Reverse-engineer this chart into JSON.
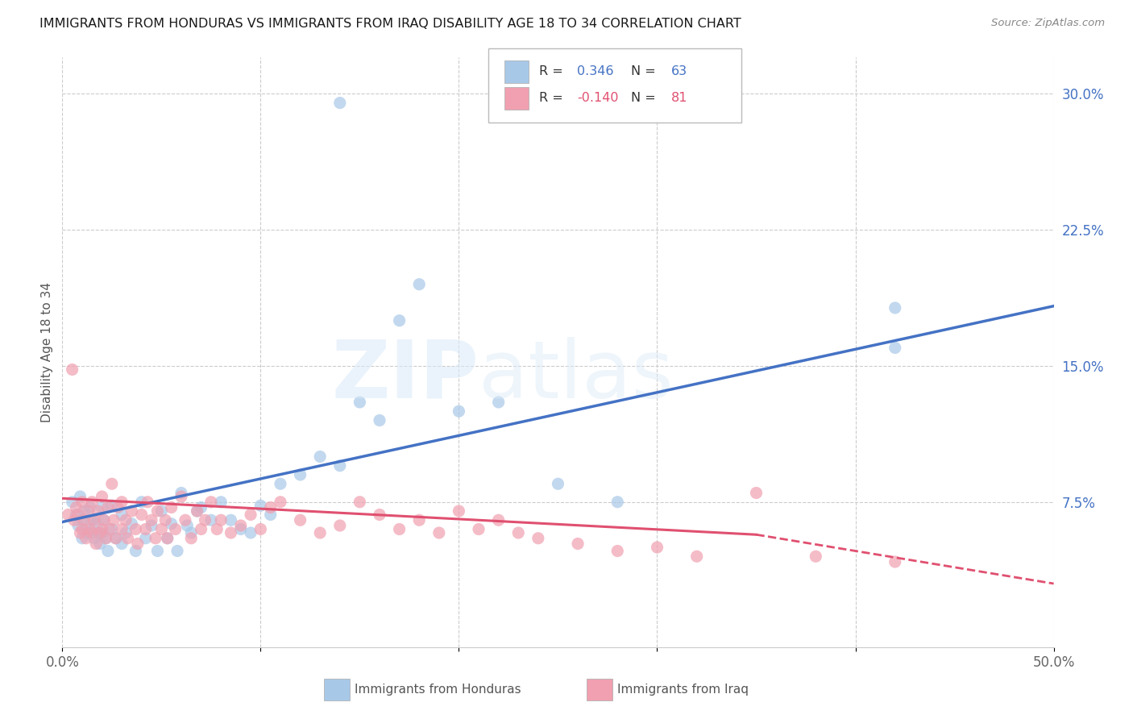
{
  "title": "IMMIGRANTS FROM HONDURAS VS IMMIGRANTS FROM IRAQ DISABILITY AGE 18 TO 34 CORRELATION CHART",
  "source": "Source: ZipAtlas.com",
  "ylabel": "Disability Age 18 to 34",
  "xlim": [
    0.0,
    0.5
  ],
  "ylim": [
    -0.005,
    0.32
  ],
  "xtick_positions": [
    0.0,
    0.1,
    0.2,
    0.3,
    0.4,
    0.5
  ],
  "xticklabels": [
    "0.0%",
    "",
    "",
    "",
    "",
    "50.0%"
  ],
  "yticks_right": [
    0.075,
    0.15,
    0.225,
    0.3
  ],
  "yticklabels_right": [
    "7.5%",
    "15.0%",
    "22.5%",
    "30.0%"
  ],
  "legend_honduras_R": "0.346",
  "legend_honduras_N": "63",
  "legend_iraq_R": "-0.140",
  "legend_iraq_N": "81",
  "color_honduras": "#A8C8E8",
  "color_iraq": "#F0A0B0",
  "color_line_honduras": "#4472C4",
  "color_line_iraq": "#E05070",
  "honduras_line": [
    0.0,
    0.064,
    0.5,
    0.183
  ],
  "iraq_line_solid": [
    0.0,
    0.077,
    0.35,
    0.057
  ],
  "iraq_line_dashed": [
    0.35,
    0.057,
    0.5,
    0.03
  ],
  "honduras_scatter_x": [
    0.14,
    0.005,
    0.007,
    0.008,
    0.009,
    0.01,
    0.01,
    0.011,
    0.012,
    0.013,
    0.014,
    0.015,
    0.016,
    0.017,
    0.018,
    0.019,
    0.02,
    0.02,
    0.021,
    0.022,
    0.023,
    0.025,
    0.025,
    0.027,
    0.03,
    0.03,
    0.032,
    0.035,
    0.037,
    0.04,
    0.042,
    0.045,
    0.048,
    0.05,
    0.053,
    0.055,
    0.058,
    0.06,
    0.063,
    0.065,
    0.068,
    0.07,
    0.075,
    0.08,
    0.085,
    0.09,
    0.095,
    0.1,
    0.105,
    0.11,
    0.12,
    0.13,
    0.14,
    0.15,
    0.16,
    0.17,
    0.18,
    0.2,
    0.22,
    0.25,
    0.28,
    0.42,
    0.42
  ],
  "honduras_scatter_y": [
    0.295,
    0.075,
    0.068,
    0.062,
    0.078,
    0.065,
    0.055,
    0.07,
    0.06,
    0.058,
    0.072,
    0.065,
    0.055,
    0.063,
    0.058,
    0.052,
    0.072,
    0.058,
    0.065,
    0.055,
    0.048,
    0.073,
    0.06,
    0.055,
    0.068,
    0.052,
    0.058,
    0.063,
    0.048,
    0.075,
    0.055,
    0.062,
    0.048,
    0.07,
    0.055,
    0.063,
    0.048,
    0.08,
    0.062,
    0.058,
    0.07,
    0.072,
    0.065,
    0.075,
    0.065,
    0.06,
    0.058,
    0.073,
    0.068,
    0.085,
    0.09,
    0.1,
    0.095,
    0.13,
    0.12,
    0.175,
    0.195,
    0.125,
    0.13,
    0.085,
    0.075,
    0.16,
    0.182
  ],
  "iraq_scatter_x": [
    0.003,
    0.005,
    0.006,
    0.007,
    0.008,
    0.009,
    0.01,
    0.01,
    0.011,
    0.012,
    0.013,
    0.014,
    0.015,
    0.015,
    0.016,
    0.017,
    0.018,
    0.019,
    0.02,
    0.02,
    0.021,
    0.022,
    0.023,
    0.024,
    0.025,
    0.026,
    0.027,
    0.028,
    0.03,
    0.03,
    0.032,
    0.033,
    0.035,
    0.037,
    0.038,
    0.04,
    0.042,
    0.043,
    0.045,
    0.047,
    0.048,
    0.05,
    0.052,
    0.053,
    0.055,
    0.057,
    0.06,
    0.062,
    0.065,
    0.068,
    0.07,
    0.072,
    0.075,
    0.078,
    0.08,
    0.085,
    0.09,
    0.095,
    0.1,
    0.105,
    0.11,
    0.12,
    0.13,
    0.14,
    0.15,
    0.16,
    0.17,
    0.18,
    0.19,
    0.2,
    0.21,
    0.22,
    0.23,
    0.24,
    0.26,
    0.28,
    0.3,
    0.32,
    0.35,
    0.38,
    0.42
  ],
  "iraq_scatter_y": [
    0.068,
    0.148,
    0.065,
    0.072,
    0.068,
    0.058,
    0.075,
    0.06,
    0.065,
    0.055,
    0.07,
    0.06,
    0.075,
    0.058,
    0.065,
    0.052,
    0.07,
    0.058,
    0.078,
    0.06,
    0.065,
    0.055,
    0.072,
    0.06,
    0.085,
    0.065,
    0.055,
    0.072,
    0.06,
    0.075,
    0.065,
    0.055,
    0.07,
    0.06,
    0.052,
    0.068,
    0.06,
    0.075,
    0.065,
    0.055,
    0.07,
    0.06,
    0.065,
    0.055,
    0.072,
    0.06,
    0.078,
    0.065,
    0.055,
    0.07,
    0.06,
    0.065,
    0.075,
    0.06,
    0.065,
    0.058,
    0.062,
    0.068,
    0.06,
    0.072,
    0.075,
    0.065,
    0.058,
    0.062,
    0.075,
    0.068,
    0.06,
    0.065,
    0.058,
    0.07,
    0.06,
    0.065,
    0.058,
    0.055,
    0.052,
    0.048,
    0.05,
    0.045,
    0.08,
    0.045,
    0.042
  ]
}
